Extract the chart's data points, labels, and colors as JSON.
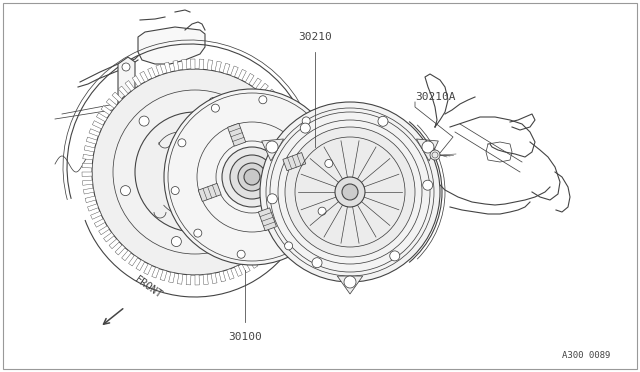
{
  "bg_color": "#ffffff",
  "lc": "#444444",
  "lc2": "#555555",
  "label_30210": "30210",
  "label_30100": "30100",
  "label_30210A": "30210A",
  "label_front": "FRONT",
  "label_code": "A300 0089",
  "figsize": [
    6.4,
    3.72
  ],
  "dpi": 100
}
